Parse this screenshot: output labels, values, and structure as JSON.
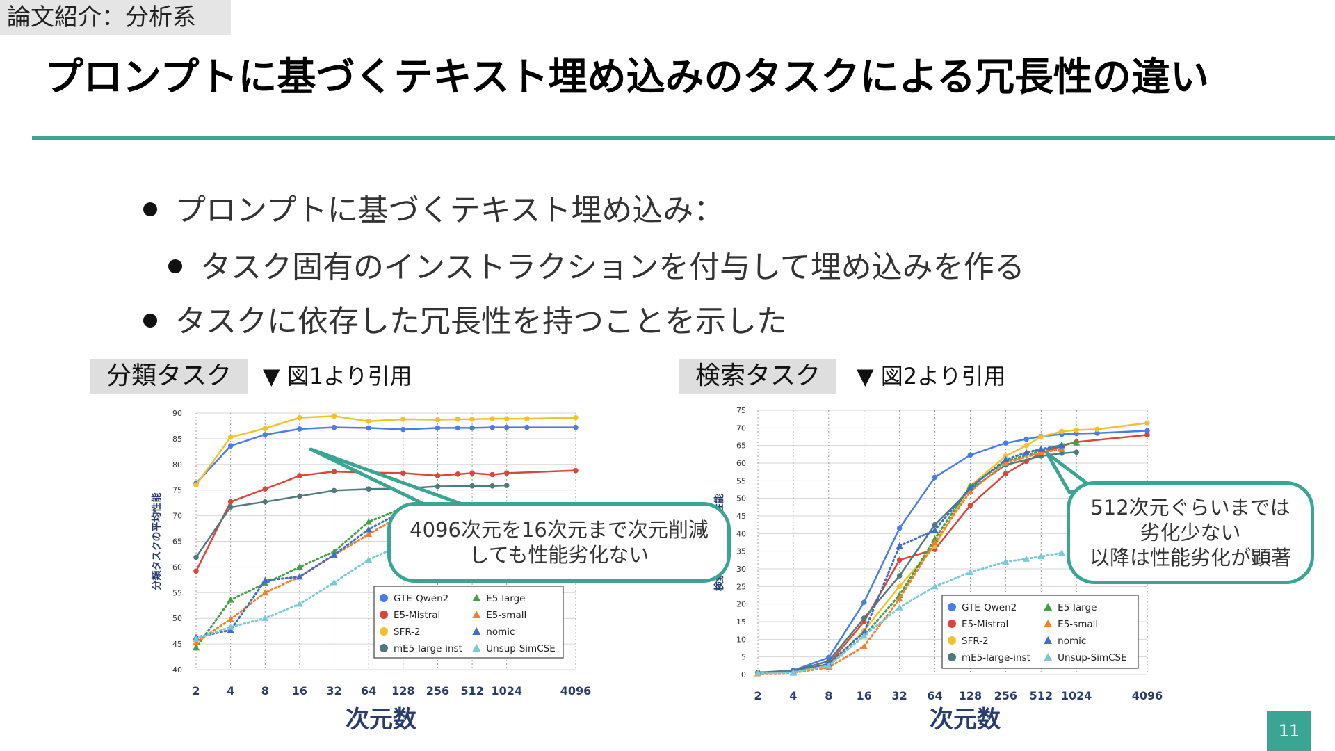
{
  "header": {
    "section_tag": "論文紹介：分析系",
    "title": "プロンプトに基づくテキスト埋め込みのタスクによる冗長性の違い"
  },
  "bullets": [
    {
      "level": 1,
      "text": "プロンプトに基づくテキスト埋め込み："
    },
    {
      "level": 2,
      "text": "タスク固有のインストラクションを付与して埋め込みを作る"
    },
    {
      "level": 1,
      "text": "タスクに依存した冗長性を持つことを示した"
    }
  ],
  "left_panel": {
    "chip": "分類タスク",
    "figure_ref": "▼ 図1より引用",
    "callout_lines": [
      "4096次元を16次元まで次元削減",
      "しても性能劣化ない"
    ]
  },
  "right_panel": {
    "chip": "検索タスク",
    "figure_ref": "▼ 図2より引用",
    "callout_lines": [
      "512次元ぐらいまでは",
      "劣化少ない",
      "以降は性能劣化が顕著"
    ]
  },
  "page_number": "11",
  "colors": {
    "accent": "#3aa593",
    "GTE-Qwen2": "#4a7de3",
    "E5-Mistral": "#d9463a",
    "SFR-2": "#f2c12e",
    "mE5-large-inst": "#4f7a7d",
    "E5-large": "#43a047",
    "E5-small": "#f27f2a",
    "nomic": "#3e6ec7",
    "Unsup-SimCSE": "#7cc9d3"
  },
  "chart_data": [
    {
      "type": "line",
      "title": "分類タスク",
      "xlabel": "次元数",
      "ylabel": "分類タスクの平均性能",
      "x_scale": "log2",
      "x_ticks": [
        2,
        4,
        8,
        16,
        32,
        64,
        128,
        256,
        512,
        1024,
        4096
      ],
      "ylim": [
        40,
        90
      ],
      "y_ticks": [
        40,
        45,
        50,
        55,
        60,
        65,
        70,
        75,
        80,
        85,
        90
      ],
      "legend": [
        "GTE-Qwen2",
        "E5-Mistral",
        "SFR-2",
        "mE5-large-inst",
        "E5-large",
        "E5-small",
        "nomic",
        "Unsup-SimCSE"
      ],
      "series": [
        {
          "name": "GTE-Qwen2",
          "style": "solid",
          "marker": "circle",
          "x": [
            2,
            4,
            8,
            16,
            32,
            64,
            128,
            256,
            384,
            512,
            768,
            1024,
            1536,
            4096
          ],
          "values": [
            76.3,
            83.6,
            85.8,
            86.9,
            87.2,
            87.1,
            86.8,
            87.1,
            87.1,
            87.1,
            87.2,
            87.2,
            87.2,
            87.2
          ]
        },
        {
          "name": "E5-Mistral",
          "style": "solid",
          "marker": "circle",
          "x": [
            2,
            4,
            8,
            16,
            32,
            64,
            128,
            256,
            384,
            512,
            768,
            1024,
            4096
          ],
          "values": [
            59.2,
            72.7,
            75.2,
            77.8,
            78.6,
            78.4,
            78.3,
            77.8,
            78.1,
            78.3,
            78.0,
            78.3,
            78.8
          ]
        },
        {
          "name": "SFR-2",
          "style": "solid",
          "marker": "circle",
          "x": [
            2,
            4,
            8,
            16,
            32,
            64,
            128,
            256,
            384,
            512,
            768,
            1024,
            1536,
            4096
          ],
          "values": [
            76.0,
            85.3,
            87.0,
            89.1,
            89.4,
            88.4,
            88.8,
            88.7,
            88.8,
            88.8,
            88.9,
            88.9,
            88.9,
            89.1
          ]
        },
        {
          "name": "mE5-large-inst",
          "style": "solid",
          "marker": "circle",
          "x": [
            2,
            4,
            8,
            16,
            32,
            64,
            128,
            256,
            512,
            768,
            1024
          ],
          "values": [
            61.9,
            71.7,
            72.7,
            73.8,
            74.9,
            75.2,
            75.3,
            75.7,
            75.8,
            75.8,
            75.9
          ]
        },
        {
          "name": "E5-large",
          "style": "dotted",
          "marker": "triangle",
          "x": [
            2,
            4,
            8,
            16,
            32,
            64,
            128
          ],
          "values": [
            44.3,
            53.6,
            56.8,
            60.0,
            63.0,
            68.8,
            71.5
          ]
        },
        {
          "name": "E5-small",
          "style": "dotted",
          "marker": "triangle",
          "x": [
            2,
            4,
            8,
            16,
            32,
            64,
            128
          ],
          "values": [
            45.3,
            49.8,
            55.0,
            58.1,
            62.3,
            66.4,
            70.2
          ]
        },
        {
          "name": "nomic",
          "style": "dotted",
          "marker": "triangle",
          "x": [
            2,
            4,
            8,
            16,
            32,
            64,
            128
          ],
          "values": [
            46.3,
            47.7,
            57.4,
            58.1,
            62.4,
            67.3,
            71.0
          ]
        },
        {
          "name": "Unsup-SimCSE",
          "style": "dotted",
          "marker": "triangle",
          "x": [
            2,
            4,
            8,
            16,
            32,
            64,
            128
          ],
          "values": [
            46.0,
            48.3,
            50.0,
            52.8,
            57.0,
            61.4,
            64.5
          ]
        }
      ]
    },
    {
      "type": "line",
      "title": "検索タスク",
      "xlabel": "次元数",
      "ylabel": "検索タスクの平均性能",
      "x_scale": "log2",
      "x_ticks": [
        2,
        4,
        8,
        16,
        32,
        64,
        128,
        256,
        512,
        1024,
        4096
      ],
      "ylim": [
        0,
        75
      ],
      "y_ticks": [
        0,
        5,
        10,
        15,
        20,
        25,
        30,
        35,
        40,
        45,
        50,
        55,
        60,
        65,
        70,
        75
      ],
      "legend": [
        "GTE-Qwen2",
        "E5-Mistral",
        "SFR-2",
        "mE5-large-inst",
        "E5-large",
        "E5-small",
        "nomic",
        "Unsup-SimCSE"
      ],
      "series": [
        {
          "name": "GTE-Qwen2",
          "style": "solid",
          "marker": "circle",
          "x": [
            2,
            4,
            8,
            16,
            32,
            64,
            128,
            256,
            384,
            512,
            768,
            1024,
            1536,
            4096
          ],
          "values": [
            0.5,
            1.2,
            4.8,
            20.5,
            41.5,
            56.0,
            62.3,
            65.7,
            66.8,
            67.6,
            68.2,
            68.4,
            68.5,
            69.2
          ]
        },
        {
          "name": "E5-Mistral",
          "style": "solid",
          "marker": "circle",
          "x": [
            2,
            4,
            8,
            16,
            32,
            64,
            128,
            256,
            384,
            512,
            768,
            1024,
            4096
          ],
          "values": [
            0.4,
            0.8,
            3.0,
            15.0,
            32.5,
            35.5,
            48.0,
            57.0,
            60.5,
            62.8,
            64.9,
            66.0,
            68.0
          ]
        },
        {
          "name": "SFR-2",
          "style": "solid",
          "marker": "circle",
          "x": [
            2,
            4,
            8,
            16,
            32,
            64,
            128,
            256,
            384,
            512,
            768,
            1024,
            1536,
            4096
          ],
          "values": [
            0.5,
            0.8,
            2.5,
            12.5,
            25.0,
            36.5,
            53.5,
            62.0,
            65.0,
            67.5,
            69.0,
            69.4,
            69.6,
            71.4
          ]
        },
        {
          "name": "mE5-large-inst",
          "style": "solid",
          "marker": "circle",
          "x": [
            2,
            4,
            8,
            16,
            32,
            64,
            128,
            256,
            512,
            768,
            1024
          ],
          "values": [
            0.6,
            1.0,
            3.8,
            16.0,
            28.0,
            42.5,
            52.5,
            59.5,
            62.0,
            62.8,
            63.1
          ]
        },
        {
          "name": "E5-large",
          "style": "dotted",
          "marker": "triangle",
          "x": [
            2,
            4,
            8,
            16,
            32,
            64,
            128,
            256,
            512,
            768,
            1024
          ],
          "values": [
            0.4,
            0.7,
            2.5,
            11.0,
            22.5,
            38.5,
            53.5,
            60.5,
            63.5,
            65.2,
            65.8
          ]
        },
        {
          "name": "E5-small",
          "style": "dotted",
          "marker": "triangle",
          "x": [
            2,
            4,
            8,
            16,
            32,
            64,
            128,
            256,
            512,
            768
          ],
          "values": [
            0.3,
            0.5,
            2.0,
            8.0,
            21.5,
            37.5,
            52.0,
            60.0,
            63.0,
            64.0
          ]
        },
        {
          "name": "nomic",
          "style": "dotted",
          "marker": "triangle",
          "x": [
            2,
            4,
            8,
            16,
            32,
            64,
            128,
            256,
            384,
            512,
            768
          ],
          "values": [
            0.4,
            0.7,
            3.0,
            12.0,
            36.5,
            41.0,
            53.0,
            61.0,
            63.0,
            64.0,
            65.0
          ]
        },
        {
          "name": "Unsup-SimCSE",
          "style": "dotted",
          "marker": "triangle",
          "x": [
            2,
            4,
            8,
            16,
            32,
            64,
            128,
            256,
            384,
            512,
            768
          ],
          "values": [
            0.4,
            0.6,
            2.5,
            11.0,
            19.0,
            25.0,
            29.0,
            32.0,
            32.8,
            33.5,
            34.5
          ]
        }
      ]
    }
  ]
}
